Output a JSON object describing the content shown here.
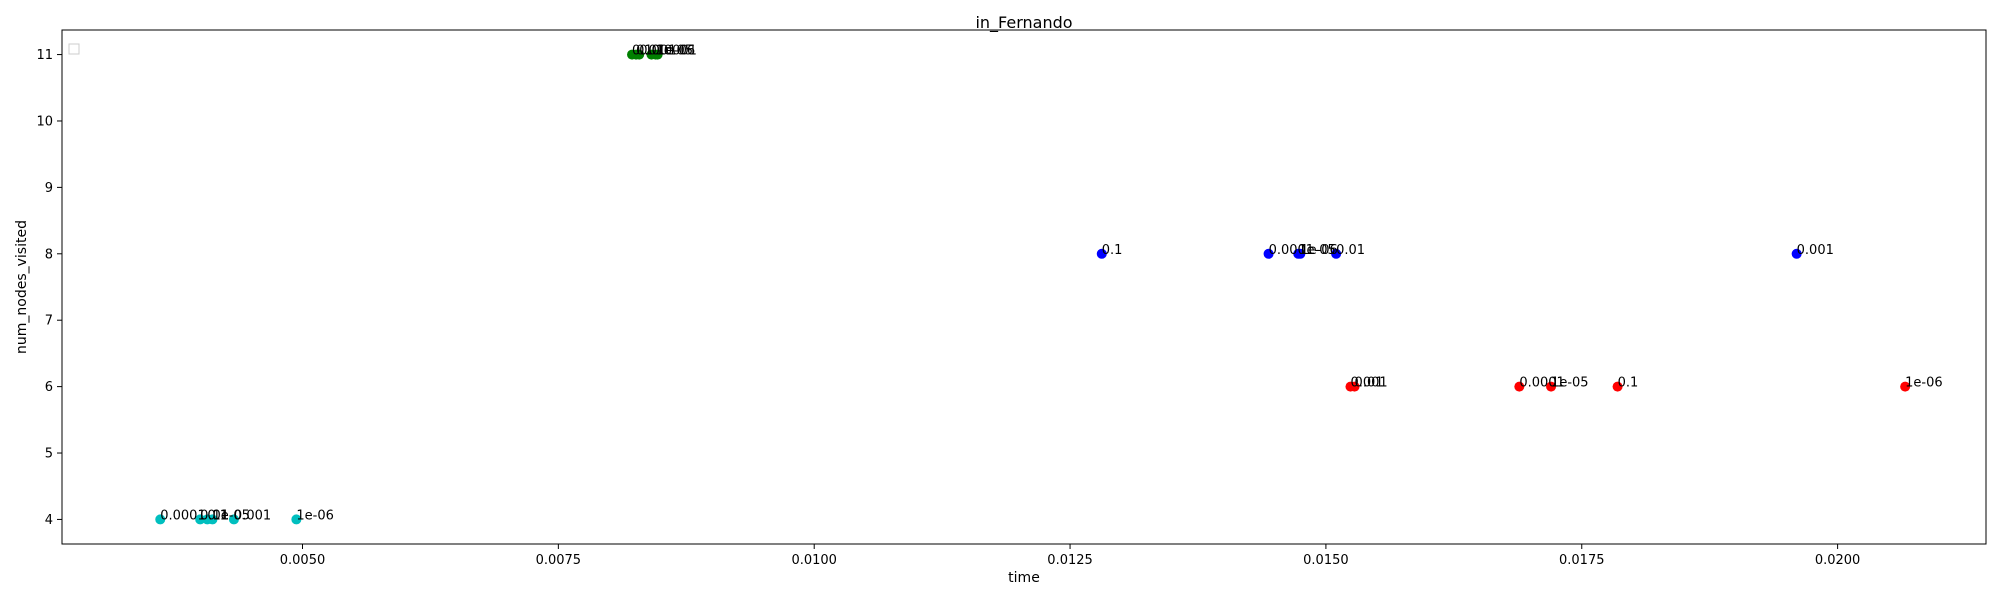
{
  "chart_data": {
    "type": "scatter",
    "title": "in_Fernando",
    "xlabel": "time",
    "ylabel": "num_nodes_visited",
    "xlim": [
      0.00265,
      0.02145
    ],
    "ylim": [
      3.63,
      11.37
    ],
    "x_ticks": [
      0.005,
      0.0075,
      0.01,
      0.0125,
      0.015,
      0.0175,
      0.02
    ],
    "x_tick_labels": [
      "0.0050",
      "0.0075",
      "0.0100",
      "0.0125",
      "0.0150",
      "0.0175",
      "0.0200"
    ],
    "y_ticks": [
      4,
      5,
      6,
      7,
      8,
      9,
      10,
      11
    ],
    "y_tick_labels": [
      "4",
      "5",
      "6",
      "7",
      "8",
      "9",
      "10",
      "11"
    ],
    "grid": false,
    "legend": "top-left (empty)",
    "series": [
      {
        "color": "#00bfbf",
        "points": [
          {
            "x": 0.00361,
            "y": 4,
            "label": "0.0001"
          },
          {
            "x": 0.004,
            "y": 4,
            "label": "0.01"
          },
          {
            "x": 0.00407,
            "y": 4,
            "label": "0.1"
          },
          {
            "x": 0.00412,
            "y": 4,
            "label": "1e-05"
          },
          {
            "x": 0.00433,
            "y": 4,
            "label": "0.001"
          },
          {
            "x": 0.00494,
            "y": 4,
            "label": "1e-06"
          }
        ]
      },
      {
        "color": "#008000",
        "points": [
          {
            "x": 0.00822,
            "y": 11,
            "label": "0.1"
          },
          {
            "x": 0.00826,
            "y": 11,
            "label": "0.01"
          },
          {
            "x": 0.00829,
            "y": 11,
            "label": "0.001"
          },
          {
            "x": 0.00841,
            "y": 11,
            "label": "0.0001"
          },
          {
            "x": 0.00845,
            "y": 11,
            "label": "1e-05"
          },
          {
            "x": 0.00847,
            "y": 11,
            "label": "1e-06"
          }
        ]
      },
      {
        "color": "#0000ff",
        "points": [
          {
            "x": 0.01281,
            "y": 8,
            "label": "0.1"
          },
          {
            "x": 0.01444,
            "y": 8,
            "label": "0.0001"
          },
          {
            "x": 0.01473,
            "y": 8,
            "label": "1e-05"
          },
          {
            "x": 0.01475,
            "y": 8,
            "label": "1e-06"
          },
          {
            "x": 0.0151,
            "y": 8,
            "label": "0.01"
          },
          {
            "x": 0.0196,
            "y": 8,
            "label": "0.001"
          }
        ]
      },
      {
        "color": "#ff0000",
        "points": [
          {
            "x": 0.01524,
            "y": 6,
            "label": "0.001"
          },
          {
            "x": 0.01528,
            "y": 6,
            "label": "0.01"
          },
          {
            "x": 0.01689,
            "y": 6,
            "label": "0.0001"
          },
          {
            "x": 0.0172,
            "y": 6,
            "label": "1e-05"
          },
          {
            "x": 0.01785,
            "y": 6,
            "label": "0.1"
          },
          {
            "x": 0.02066,
            "y": 6,
            "label": "1e-06"
          }
        ]
      }
    ]
  }
}
